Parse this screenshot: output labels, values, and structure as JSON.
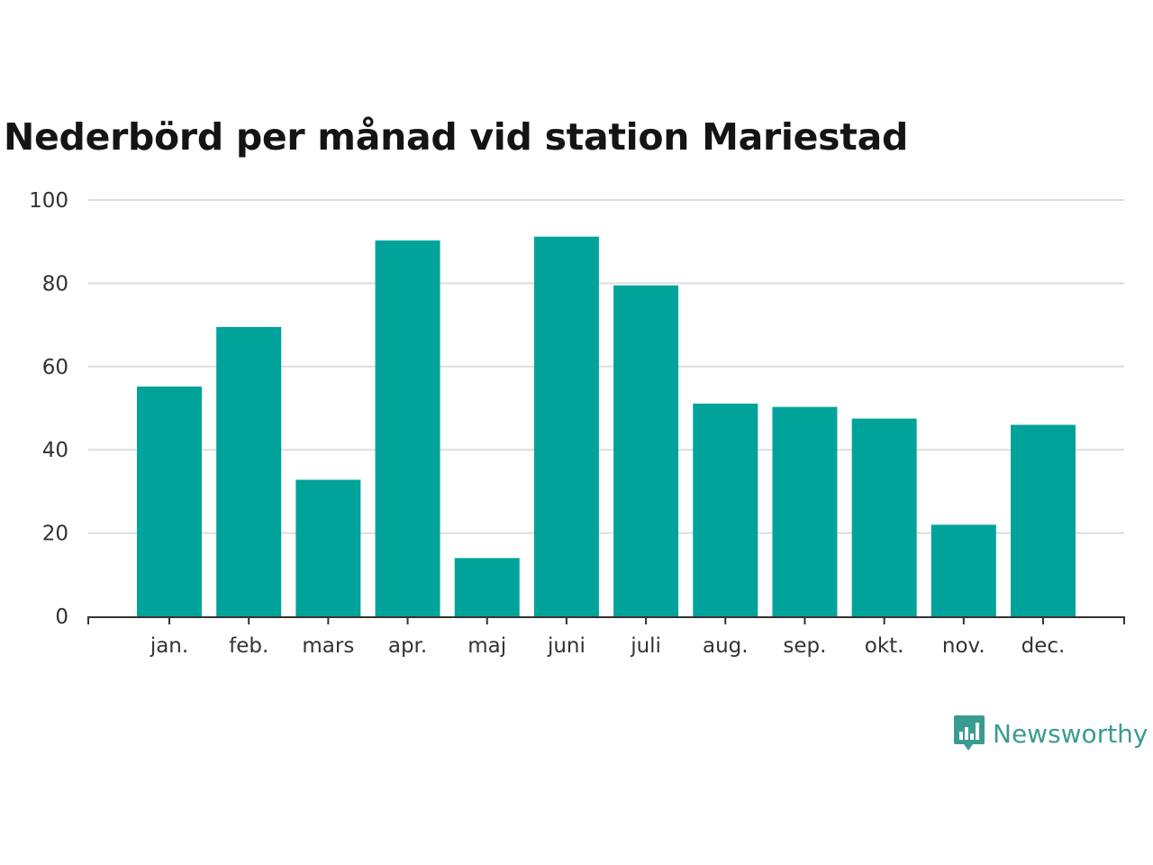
{
  "title": "Nederbörd per månad vid station Mariestad",
  "brand": {
    "name": "Newsworthy",
    "icon": "newsworthy-logo-icon"
  },
  "colors": {
    "bar": "#00a39a",
    "grid": "#dddddd",
    "axis": "#333333",
    "brand": "#3a9b91"
  },
  "chart_data": {
    "type": "bar",
    "title": "Nederbörd per månad vid station Mariestad",
    "xlabel": "",
    "ylabel": "",
    "categories": [
      "jan.",
      "feb.",
      "mars",
      "apr.",
      "maj",
      "juni",
      "juli",
      "aug.",
      "sep.",
      "okt.",
      "nov.",
      "dec."
    ],
    "values": [
      55.2,
      69.5,
      32.8,
      90.3,
      14.0,
      91.2,
      79.5,
      51.1,
      50.3,
      47.5,
      22.0,
      46.0
    ],
    "ylim": [
      0,
      100
    ],
    "yticks": [
      0,
      20,
      40,
      60,
      80,
      100
    ],
    "grid": true,
    "legend": "none"
  }
}
